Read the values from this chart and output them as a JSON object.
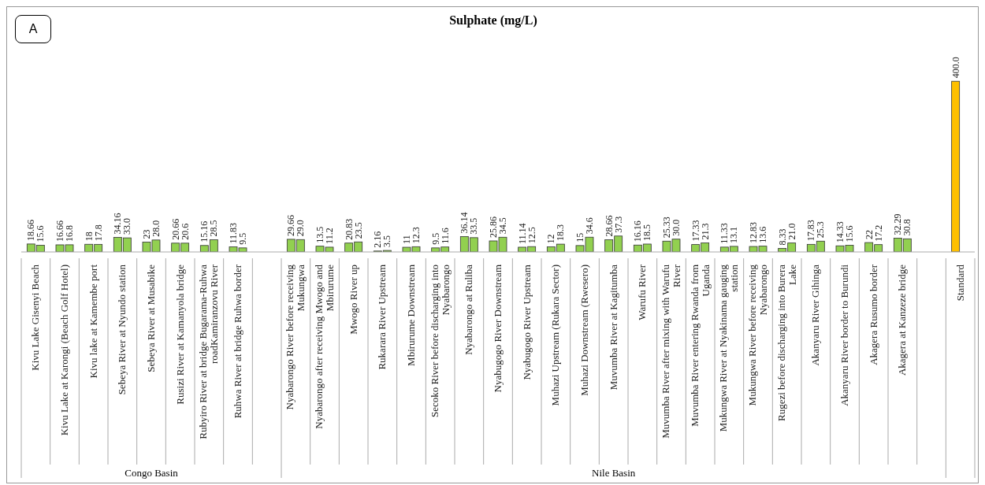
{
  "chart_data": {
    "type": "bar",
    "title": "Sulphate (mg/L)",
    "annotations": [
      "A",
      "Congo Basin",
      "Nile Basin"
    ],
    "categories": [
      "Kivu Lake Gisenyi Beach",
      "Kivu Lake at Karongi (Beach Golf Hotel)",
      "Kivu lake at Kamembe port",
      "Sebeya River at Nyundo station",
      "Sebeya River at Musabike",
      "Rusizi River at Kamanyola bridge",
      "Rubyiro River at bridge Bugarama-Ruhwa roadKamiranzovu River",
      "Ruhwa River at bridge Ruhwa border",
      null,
      "Nyabarongo River before receiving Mukungwa",
      "Nyabarongo after receiving Mwogo and Mbirurume",
      "Mwogo River up",
      "Rukarara River Upstream",
      "Mbirurume Downstream",
      "Secoko River before discharging into Nyabarongo",
      "Nyabarongo at Ruliba",
      "Nyabugogo River Downstream",
      "Nyabugogo River Upstream",
      "Muhazi Upstream (Rukara Sector)",
      "Muhazi Downstream (Rwesero)",
      "Muvumba River at Kagitumba",
      "Warufu River",
      "Muvumba River after mixing with Warufu River",
      "Muvumba River entering Rwanda from Uganda",
      "Mukungwa River at Nyakinama gauging station",
      "Mukungwa River before receiving Nyabarongo",
      "Rugezi before discharging into Burera Lake",
      "Akanyaru River Gihinga",
      "Akanyaru River border to Burundi",
      "Akagera Rusumo border",
      "Akagera at Kanzeze bridge",
      null,
      "Standard"
    ],
    "series": [
      {
        "colors": [
          "#92d050",
          "#92d050",
          "#92d050",
          "#92d050",
          "#92d050",
          "#92d050",
          "#92d050",
          "#92d050",
          null,
          "#92d050",
          "#92d050",
          "#92d050",
          "#92d050",
          "#92d050",
          "#92d050",
          "#92d050",
          "#92d050",
          "#92d050",
          "#92d050",
          "#92d050",
          "#92d050",
          "#92d050",
          "#92d050",
          "#92d050",
          "#92d050",
          "#92d050",
          "#92d050",
          "#92d050",
          "#92d050",
          "#92d050",
          "#92d050",
          null,
          "#ffc000"
        ],
        "values": [
          18.66,
          16.66,
          18,
          34.16,
          23,
          20.66,
          15.16,
          11.83,
          null,
          29.66,
          13.5,
          20.83,
          2.16,
          11,
          9.5,
          36.14,
          25.86,
          11.14,
          12,
          15,
          28.66,
          16.16,
          25.33,
          17.33,
          11.33,
          12.83,
          8.33,
          17.83,
          14.33,
          22,
          32.29,
          null,
          400
        ],
        "value_labels": [
          "18.66",
          "16.66",
          "18",
          "34.16",
          "23",
          "20.66",
          "15.16",
          "11.83",
          null,
          "29.66",
          "13.5",
          "20.83",
          "2.16",
          "11",
          "9.5",
          "36.14",
          "25.86",
          "11.14",
          "12",
          "15",
          "28.66",
          "16.16",
          "25.33",
          "17.33",
          "11.33",
          "12.83",
          "8.33",
          "17.83",
          "14.33",
          "22",
          "32.29",
          null,
          "400.0"
        ]
      },
      {
        "color": "#92d050",
        "values": [
          15.6,
          16.8,
          17.8,
          33.0,
          28.0,
          20.6,
          28.5,
          9.5,
          null,
          29.0,
          11.2,
          23.5,
          3.5,
          12.3,
          11.6,
          33.5,
          34.5,
          12.5,
          18.3,
          34.6,
          37.3,
          18.5,
          30.0,
          21.3,
          13.1,
          13.6,
          21.0,
          25.3,
          15.6,
          17.2,
          30.8,
          null,
          null
        ],
        "value_labels": [
          "15.6",
          "16.8",
          "17.8",
          "33.0",
          "28.0",
          "20.6",
          "28.5",
          "9.5",
          null,
          "29.0",
          "11.2",
          "23.5",
          "3.5",
          "12.3",
          "11.6",
          "33.5",
          "34.5",
          "12.5",
          "18.3",
          "34.6",
          "37.3",
          "18.5",
          "30.0",
          "21.3",
          "13.1",
          "13.6",
          "21.0",
          "25.3",
          "15.6",
          "17.2",
          "30.8",
          null,
          null
        ]
      }
    ],
    "grid": false,
    "legend": false
  }
}
